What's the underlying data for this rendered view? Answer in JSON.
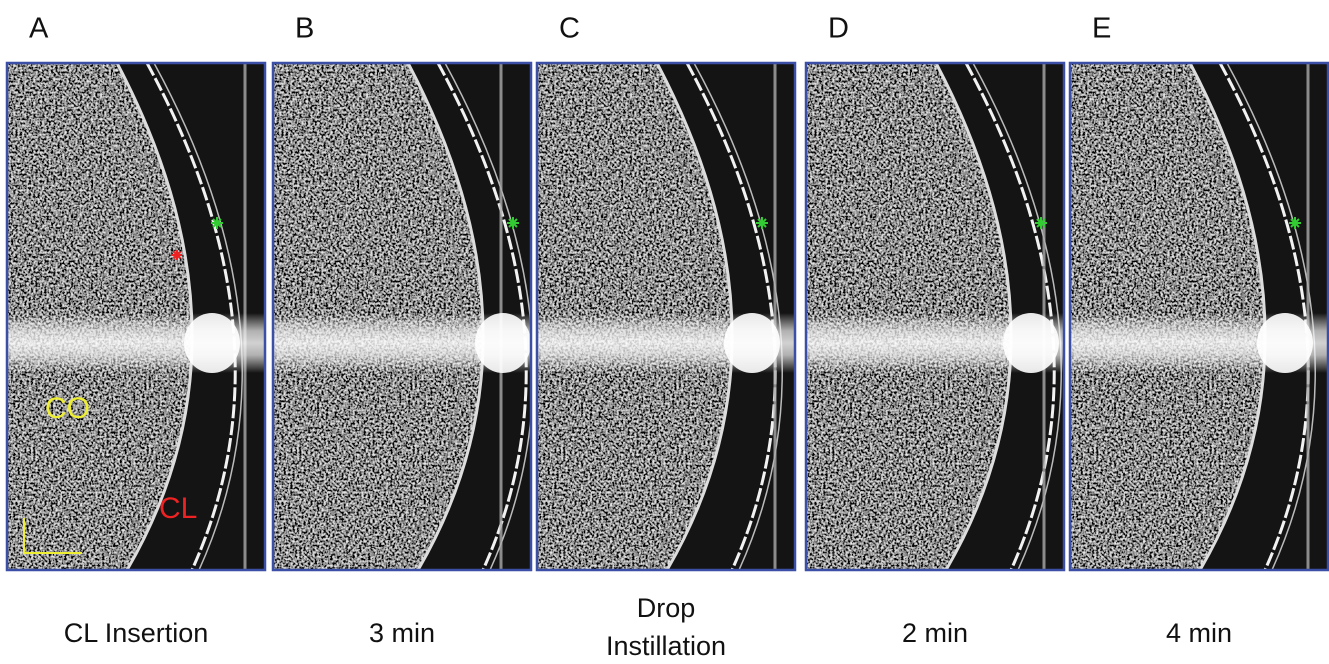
{
  "panels": [
    {
      "letter": "A",
      "caption": [
        "CL Insertion"
      ]
    },
    {
      "letter": "B",
      "caption": [
        "3 min"
      ]
    },
    {
      "letter": "C",
      "caption": [
        "Drop",
        "Instillation"
      ]
    },
    {
      "letter": "D",
      "caption": [
        "2 min"
      ]
    },
    {
      "letter": "E",
      "caption": [
        "4 min"
      ]
    }
  ],
  "annotations": {
    "cornea": "CO",
    "lens": "CL"
  }
}
